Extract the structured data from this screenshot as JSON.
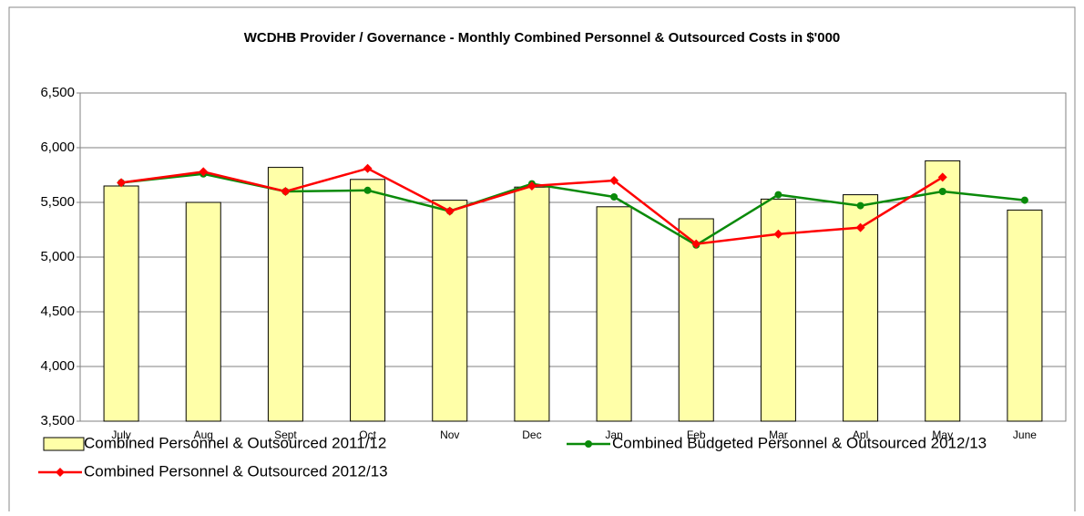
{
  "chart_data": {
    "type": "bar",
    "title": "WCDHB Provider / Governance - Monthly Combined Personnel & Outsourced Costs in $'000",
    "categories": [
      "July",
      "Aug",
      "Sept",
      "Oct",
      "Nov",
      "Dec",
      "Jan",
      "Feb",
      "Mar",
      "Apl",
      "May",
      "June"
    ],
    "series": [
      {
        "name": "Combined Personnel & Outsourced 2011/12",
        "type": "bar",
        "color": "#ffffa8",
        "values": [
          5650,
          5500,
          5820,
          5710,
          5520,
          5640,
          5460,
          5350,
          5530,
          5570,
          5880,
          5430
        ]
      },
      {
        "name": "Combined Budgeted Personnel & Outsourced 2012/13",
        "type": "line",
        "color": "#0a8a0a",
        "values": [
          5680,
          5760,
          5600,
          5610,
          5420,
          5670,
          5550,
          5110,
          5570,
          5470,
          5600,
          5520
        ]
      },
      {
        "name": "Combined Personnel & Outsourced 2012/13",
        "type": "line",
        "color": "#ff0000",
        "values": [
          5680,
          5780,
          5600,
          5810,
          5420,
          5650,
          5700,
          5120,
          5210,
          5270,
          5730,
          null
        ]
      }
    ],
    "ylim": [
      3500,
      6500
    ],
    "yticks": [
      {
        "value": 3500,
        "label": "3,500"
      },
      {
        "value": 4000,
        "label": "4,000"
      },
      {
        "value": 4500,
        "label": "4,500"
      },
      {
        "value": 5000,
        "label": "5,000"
      },
      {
        "value": 5500,
        "label": "5,500"
      },
      {
        "value": 6000,
        "label": "6,000"
      },
      {
        "value": 6500,
        "label": "6,500"
      }
    ],
    "grid": true,
    "legend": "bottom"
  }
}
